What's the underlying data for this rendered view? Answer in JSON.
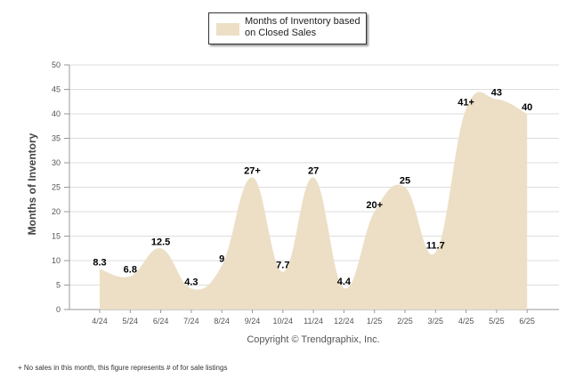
{
  "colors": {
    "fill": "#ecdfc6",
    "grid": "#dddddd",
    "axis": "#999999"
  },
  "legend": {
    "label": "Months of Inventory based on Closed Sales"
  },
  "copyright": "Copyright © Trendgraphix, Inc.",
  "footnote": "+  No sales in this month, this figure represents # of for sale listings",
  "chart_data": {
    "type": "area",
    "ylabel": "Months of Inventory",
    "xlabel": "",
    "ylim": [
      0,
      50
    ],
    "yticks": [
      0,
      5,
      10,
      15,
      20,
      25,
      30,
      35,
      40,
      45,
      50
    ],
    "grid": true,
    "legend_position": "top-center",
    "categories": [
      "4/24",
      "5/24",
      "6/24",
      "7/24",
      "8/24",
      "9/24",
      "10/24",
      "11/24",
      "12/24",
      "1/25",
      "2/25",
      "3/25",
      "4/25",
      "5/25",
      "6/25"
    ],
    "series": [
      {
        "name": "Months of Inventory based on Closed Sales",
        "values": [
          8.3,
          6.8,
          12.5,
          4.3,
          9,
          27,
          7.7,
          27,
          4.4,
          20,
          25,
          11.7,
          41,
          43,
          40
        ],
        "labels": [
          "8.3",
          "6.8",
          "12.5",
          "4.3",
          "9",
          "27+",
          "7.7",
          "27",
          "4.4",
          "20+",
          "25",
          "11.7",
          "41+",
          "43",
          "40"
        ]
      }
    ]
  }
}
